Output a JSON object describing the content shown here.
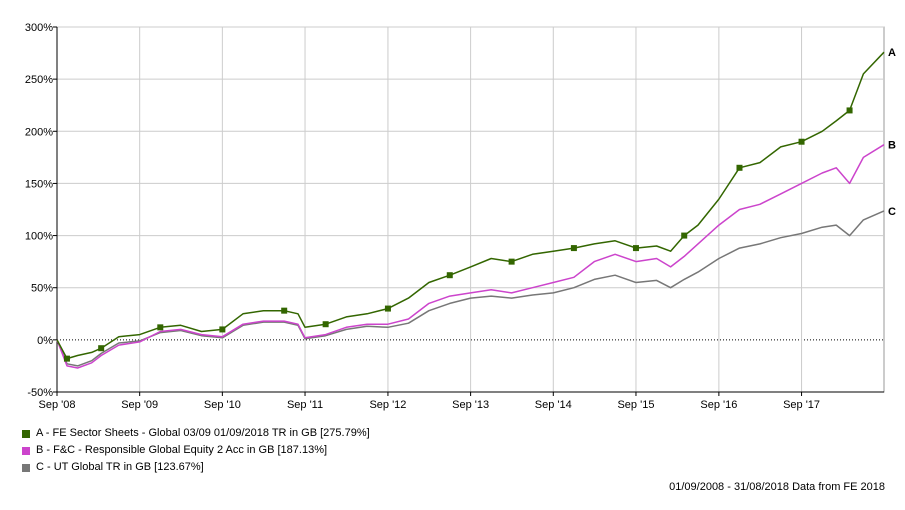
{
  "chart_data": {
    "type": "line",
    "y_unit": "%",
    "ylim": [
      -50,
      300
    ],
    "y_ticks": [
      "300%",
      "250%",
      "200%",
      "150%",
      "100%",
      "50%",
      "0%",
      "-50%"
    ],
    "y_tick_values": [
      300,
      250,
      200,
      150,
      100,
      50,
      0,
      -50
    ],
    "xlim": [
      "2008-09-01",
      "2018-08-31"
    ],
    "x_ticks": [
      "Sep '08",
      "Sep '09",
      "Sep '10",
      "Sep '11",
      "Sep '12",
      "Sep '13",
      "Sep '14",
      "Sep '15",
      "Sep '16",
      "Sep '17"
    ],
    "x_tick_dates": [
      "2008-09-01",
      "2009-09-01",
      "2010-09-01",
      "2011-09-01",
      "2012-09-01",
      "2013-09-01",
      "2014-09-01",
      "2015-09-01",
      "2016-09-01",
      "2017-09-01"
    ],
    "grid": true,
    "zero_line": "dotted",
    "series": [
      {
        "name": "A - FE Sector Sheets - Global 03/09 01/09/2018 TR in GB [275.79%]",
        "end_label": "A",
        "color": "#336600",
        "markers": "square",
        "x": [
          "2008-09-01",
          "2008-10-15",
          "2008-12-01",
          "2009-02-01",
          "2009-03-15",
          "2009-06-01",
          "2009-09-01",
          "2009-12-01",
          "2010-03-01",
          "2010-06-01",
          "2010-09-01",
          "2010-12-01",
          "2011-03-01",
          "2011-06-01",
          "2011-08-01",
          "2011-09-01",
          "2011-12-01",
          "2012-03-01",
          "2012-06-01",
          "2012-09-01",
          "2012-12-01",
          "2013-03-01",
          "2013-06-01",
          "2013-09-01",
          "2013-12-01",
          "2014-03-01",
          "2014-06-01",
          "2014-09-01",
          "2014-12-01",
          "2015-03-01",
          "2015-06-01",
          "2015-09-01",
          "2015-12-01",
          "2016-02-01",
          "2016-04-01",
          "2016-06-01",
          "2016-09-01",
          "2016-12-01",
          "2017-03-01",
          "2017-06-01",
          "2017-09-01",
          "2017-12-01",
          "2018-02-01",
          "2018-04-01",
          "2018-06-01",
          "2018-08-31"
        ],
        "values": [
          0,
          -18,
          -15,
          -12,
          -8,
          3,
          5,
          12,
          14,
          8,
          10,
          25,
          28,
          28,
          25,
          12,
          15,
          22,
          25,
          30,
          40,
          55,
          62,
          70,
          78,
          75,
          82,
          85,
          88,
          92,
          95,
          88,
          90,
          85,
          100,
          110,
          135,
          165,
          170,
          185,
          190,
          200,
          210,
          220,
          255,
          275.79
        ]
      },
      {
        "name": "B - F&C - Responsible Global Equity 2 Acc in GB [187.13%]",
        "end_label": "B",
        "color": "#cc44cc",
        "x": [
          "2008-09-01",
          "2008-10-15",
          "2008-12-01",
          "2009-02-01",
          "2009-03-15",
          "2009-06-01",
          "2009-09-01",
          "2009-12-01",
          "2010-03-01",
          "2010-06-01",
          "2010-09-01",
          "2010-12-01",
          "2011-03-01",
          "2011-06-01",
          "2011-08-01",
          "2011-09-01",
          "2011-12-01",
          "2012-03-01",
          "2012-06-01",
          "2012-09-01",
          "2012-12-01",
          "2013-03-01",
          "2013-06-01",
          "2013-09-01",
          "2013-12-01",
          "2014-03-01",
          "2014-06-01",
          "2014-09-01",
          "2014-12-01",
          "2015-03-01",
          "2015-06-01",
          "2015-09-01",
          "2015-12-01",
          "2016-02-01",
          "2016-04-01",
          "2016-06-01",
          "2016-09-01",
          "2016-12-01",
          "2017-03-01",
          "2017-06-01",
          "2017-09-01",
          "2017-12-01",
          "2018-02-01",
          "2018-04-01",
          "2018-06-01",
          "2018-08-31"
        ],
        "values": [
          0,
          -25,
          -27,
          -22,
          -15,
          -5,
          -2,
          8,
          10,
          5,
          3,
          15,
          18,
          18,
          15,
          2,
          5,
          12,
          15,
          15,
          20,
          35,
          42,
          45,
          48,
          45,
          50,
          55,
          60,
          75,
          82,
          75,
          78,
          70,
          80,
          92,
          110,
          125,
          130,
          140,
          150,
          160,
          165,
          150,
          175,
          187.13
        ]
      },
      {
        "name": "C - UT Global TR in GB [123.67%]",
        "end_label": "C",
        "color": "#777777",
        "x": [
          "2008-09-01",
          "2008-10-15",
          "2008-12-01",
          "2009-02-01",
          "2009-03-15",
          "2009-06-01",
          "2009-09-01",
          "2009-12-01",
          "2010-03-01",
          "2010-06-01",
          "2010-09-01",
          "2010-12-01",
          "2011-03-01",
          "2011-06-01",
          "2011-08-01",
          "2011-09-01",
          "2011-12-01",
          "2012-03-01",
          "2012-06-01",
          "2012-09-01",
          "2012-12-01",
          "2013-03-01",
          "2013-06-01",
          "2013-09-01",
          "2013-12-01",
          "2014-03-01",
          "2014-06-01",
          "2014-09-01",
          "2014-12-01",
          "2015-03-01",
          "2015-06-01",
          "2015-09-01",
          "2015-12-01",
          "2016-02-01",
          "2016-04-01",
          "2016-06-01",
          "2016-09-01",
          "2016-12-01",
          "2017-03-01",
          "2017-06-01",
          "2017-09-01",
          "2017-12-01",
          "2018-02-01",
          "2018-04-01",
          "2018-06-01",
          "2018-08-31"
        ],
        "values": [
          0,
          -23,
          -25,
          -20,
          -13,
          -3,
          -1,
          7,
          9,
          4,
          2,
          14,
          17,
          17,
          14,
          1,
          4,
          10,
          13,
          12,
          16,
          28,
          35,
          40,
          42,
          40,
          43,
          45,
          50,
          58,
          62,
          55,
          57,
          50,
          58,
          65,
          78,
          88,
          92,
          98,
          102,
          108,
          110,
          100,
          115,
          123.67
        ]
      }
    ],
    "legend_position": "bottom-left"
  },
  "footer": {
    "date_range": "01/09/2008 - 31/08/2018 Data from FE 2018"
  }
}
